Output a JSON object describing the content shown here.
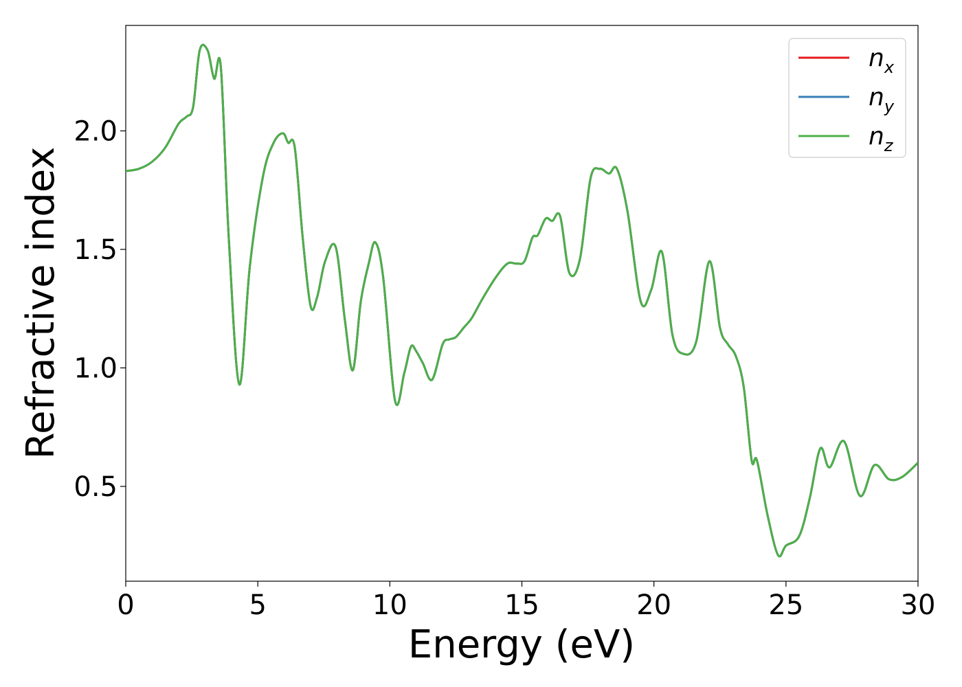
{
  "chart_data": {
    "type": "line",
    "xlabel": "Energy (eV)",
    "ylabel": "Refractive index",
    "xlim": [
      0,
      30
    ],
    "ylim": [
      0.1,
      2.445
    ],
    "grid": false,
    "legend_position": "top-right",
    "x_ticks": [
      "0",
      "5",
      "10",
      "15",
      "20",
      "25",
      "30"
    ],
    "y_ticks": [
      "0.5",
      "1.0",
      "1.5",
      "2.0"
    ],
    "x_tick_values": [
      0,
      5,
      10,
      15,
      20,
      25,
      30
    ],
    "y_tick_values": [
      0.5,
      1.0,
      1.5,
      2.0
    ],
    "series": [
      {
        "name": "n_x",
        "label_base": "n",
        "label_sub": "x",
        "color": "#e41a1c"
      },
      {
        "name": "n_y",
        "label_base": "n",
        "label_sub": "y",
        "color": "#377eb8"
      },
      {
        "name": "n_z",
        "label_base": "n",
        "label_sub": "z",
        "color": "#4daf4a"
      }
    ],
    "x": [
      0,
      0.5,
      1.0,
      1.5,
      2.0,
      2.3,
      2.55,
      2.8,
      3.1,
      3.35,
      3.6,
      3.9,
      4.3,
      4.7,
      5.2,
      5.6,
      5.95,
      6.15,
      6.4,
      6.7,
      7.0,
      7.25,
      7.55,
      7.95,
      8.3,
      8.6,
      8.9,
      9.2,
      9.45,
      9.75,
      10.2,
      10.55,
      10.8,
      11.0,
      11.25,
      11.6,
      12.0,
      12.25,
      12.5,
      12.8,
      13.1,
      13.5,
      14.0,
      14.45,
      14.8,
      15.1,
      15.4,
      15.6,
      15.9,
      16.15,
      16.45,
      16.8,
      17.2,
      17.6,
      17.95,
      18.3,
      18.6,
      19.0,
      19.5,
      19.9,
      20.3,
      20.7,
      21.1,
      21.6,
      22.1,
      22.5,
      22.8,
      23.1,
      23.4,
      23.7,
      23.9,
      24.3,
      24.7,
      25.0,
      25.5,
      25.9,
      26.3,
      26.65,
      27.2,
      27.8,
      28.35,
      28.9,
      29.4,
      30.0
    ],
    "values": [
      1.83,
      1.84,
      1.87,
      1.93,
      2.03,
      2.06,
      2.1,
      2.34,
      2.34,
      2.22,
      2.27,
      1.55,
      0.93,
      1.43,
      1.81,
      1.95,
      1.99,
      1.95,
      1.93,
      1.55,
      1.26,
      1.3,
      1.45,
      1.51,
      1.2,
      0.99,
      1.28,
      1.44,
      1.53,
      1.38,
      0.86,
      0.98,
      1.09,
      1.07,
      1.02,
      0.95,
      1.1,
      1.12,
      1.13,
      1.17,
      1.21,
      1.29,
      1.38,
      1.44,
      1.44,
      1.45,
      1.55,
      1.56,
      1.63,
      1.62,
      1.64,
      1.4,
      1.46,
      1.8,
      1.84,
      1.82,
      1.84,
      1.66,
      1.28,
      1.33,
      1.49,
      1.14,
      1.06,
      1.11,
      1.45,
      1.17,
      1.1,
      1.05,
      0.92,
      0.61,
      0.61,
      0.38,
      0.21,
      0.25,
      0.29,
      0.45,
      0.66,
      0.58,
      0.69,
      0.46,
      0.59,
      0.53,
      0.54,
      0.6
    ]
  }
}
